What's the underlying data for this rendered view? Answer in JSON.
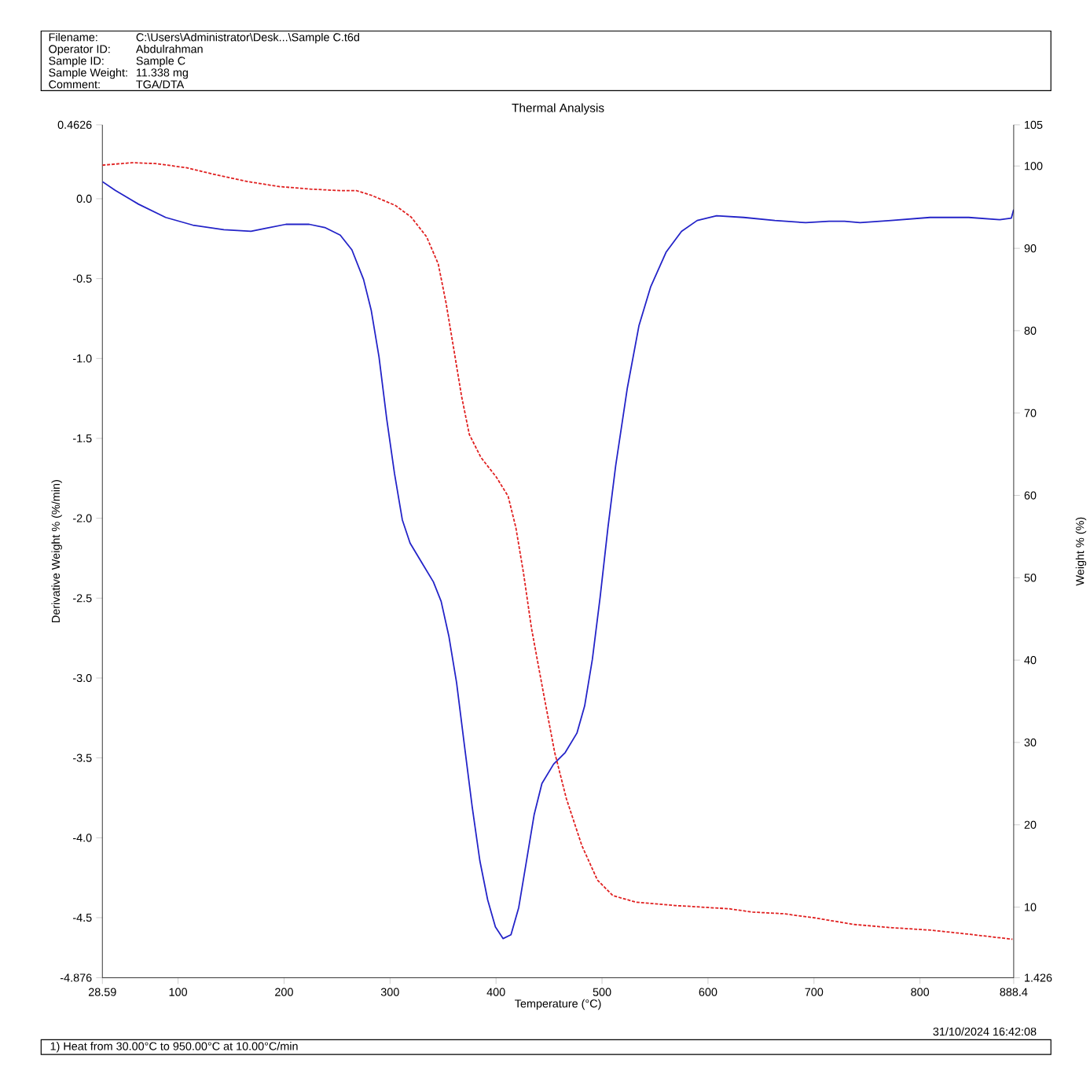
{
  "chart_data": {
    "type": "line",
    "title": "Thermal Analysis",
    "xlabel": "Temperature (°C)",
    "ylabel": "Derivative Weight % (%/min)",
    "y2label": "Weight % (%)",
    "annotations": [
      "Filename:",
      "C:\\Users\\Administrator\\Desk...\\Sample C.t6d",
      "Operator ID:",
      "Abdulrahman",
      "Sample ID:",
      "Sample C",
      "Sample Weight:",
      "11.338 mg",
      "Comment:",
      "TGA/DTA",
      "31/10/2024 16:42:08",
      "1)  Heat from 30.00°C to 950.00°C at 10.00°C/min"
    ],
    "xlim": [
      28.59,
      888.4
    ],
    "xticks": [
      28.59,
      100,
      200,
      300,
      400,
      500,
      600,
      700,
      800,
      888.4
    ],
    "ylim": [
      -4.876,
      0.4626
    ],
    "yticks": [
      -4.876,
      -4.5,
      {
        "value": -4,
        "label": "-4.0"
      },
      -3.5,
      {
        "value": -3,
        "label": "-3.0"
      },
      -2.5,
      {
        "value": -2,
        "label": "-2.0"
      },
      -1.5,
      {
        "value": -1,
        "label": "-1.0"
      },
      -0.5,
      {
        "value": 0,
        "label": "0.0"
      },
      0.4626
    ],
    "y2lim": [
      1.426,
      105
    ],
    "y2ticks": [
      1.426,
      10,
      20,
      30,
      40,
      50,
      60,
      70,
      80,
      90,
      100,
      105
    ],
    "series": [
      {
        "color": "#2323c8",
        "line_style": "solid",
        "x": [
          28.6,
          40.7,
          62.7,
          88.3,
          113.9,
          143.2,
          168.8,
          183.5,
          201.8,
          223.7,
          238.4,
          253,
          264,
          275,
          282.3,
          289.6,
          296.9,
          304.2,
          311.6,
          318.9,
          329.9,
          340.9,
          348.2,
          355.5,
          362.8,
          370.1,
          377.5,
          384.8,
          392.1,
          399.4,
          406.7,
          414.1,
          421.4,
          428.7,
          436,
          443.3,
          454.3,
          465.3,
          476.3,
          483.6,
          490.9,
          498.2,
          505.6,
          512.9,
          523.9,
          534.8,
          545.8,
          560.4,
          575,
          589.8,
          608.1,
          633.7,
          663,
          692.2,
          714.2,
          728.8,
          743.5,
          772.8,
          809.4,
          846,
          875.3,
          886.2,
          888.4
        ],
        "values": [
          0.107,
          0.053,
          -0.034,
          -0.117,
          -0.165,
          -0.194,
          -0.204,
          -0.184,
          -0.16,
          -0.16,
          -0.18,
          -0.228,
          -0.32,
          -0.505,
          -0.7,
          -0.99,
          -1.38,
          -1.72,
          -2.01,
          -2.155,
          -2.277,
          -2.398,
          -2.52,
          -2.738,
          -3.03,
          -3.417,
          -3.806,
          -4.146,
          -4.388,
          -4.558,
          -4.631,
          -4.607,
          -4.437,
          -4.146,
          -3.854,
          -3.66,
          -3.539,
          -3.466,
          -3.345,
          -3.175,
          -2.883,
          -2.495,
          -2.058,
          -1.67,
          -1.184,
          -0.796,
          -0.553,
          -0.335,
          -0.204,
          -0.136,
          -0.107,
          -0.117,
          -0.136,
          -0.15,
          -0.141,
          -0.141,
          -0.15,
          -0.136,
          -0.117,
          -0.117,
          -0.131,
          -0.121,
          -0.068
        ]
      },
      {
        "color": "#e02020",
        "line_style": "dashed",
        "axis": "y2",
        "x": [
          28.6,
          56.4,
          78.3,
          107.6,
          136.9,
          166.2,
          195.5,
          224.7,
          254,
          268.6,
          283.3,
          305.2,
          319.9,
          334.5,
          345.5,
          352.8,
          360.1,
          367.4,
          374.8,
          385.8,
          400.4,
          411.4,
          418.7,
          426,
          433.4,
          444.3,
          455.3,
          466.3,
          480.9,
          495.6,
          510.2,
          532.2,
          568.8,
          620,
          642,
          671.3,
          700.6,
          737.2,
          773.8,
          810.4,
          847,
          887.2
        ],
        "values": [
          100.1,
          100.4,
          100.3,
          99.8,
          98.9,
          98.1,
          97.5,
          97.2,
          97.0,
          97.0,
          96.4,
          95.2,
          93.8,
          91.4,
          88.1,
          83.4,
          77.8,
          72.1,
          67.4,
          64.6,
          62.2,
          59.9,
          56.1,
          50.5,
          43.9,
          36.3,
          28.8,
          23.2,
          17.5,
          13.3,
          11.4,
          10.6,
          10.2,
          9.8,
          9.4,
          9.2,
          8.7,
          7.9,
          7.5,
          7.2,
          6.7,
          6.1
        ]
      }
    ]
  }
}
